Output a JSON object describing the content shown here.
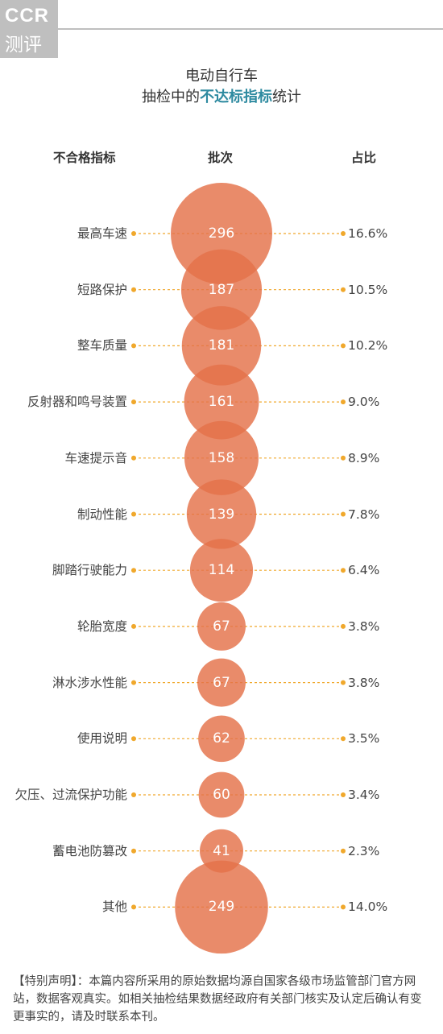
{
  "logo": {
    "top": "CCR",
    "bottom": "测评"
  },
  "title_line1": "电动自行车",
  "title_line2": {
    "pre": "抽检中的",
    "highlight": "不达标指标",
    "post": "统计"
  },
  "headers": {
    "indicator": "不合格指标",
    "count": "批次",
    "percent": "占比"
  },
  "colors": {
    "bubble": "#e47149",
    "dot": "#f0a82c",
    "accent": "#2e8aa0"
  },
  "chart_data": {
    "type": "bubble",
    "categories": [
      "最高车速",
      "短路保护",
      "整车质量",
      "反射器和鸣号装置",
      "车速提示音",
      "制动性能",
      "脚踏行驶能力",
      "轮胎宽度",
      "淋水涉水性能",
      "使用说明",
      "欠压、过流保护功能",
      "蓄电池防篡改",
      "其他"
    ],
    "values": [
      296,
      187,
      181,
      161,
      158,
      139,
      114,
      67,
      67,
      62,
      60,
      41,
      249
    ],
    "percent_labels": [
      "16.6%",
      "10.5%",
      "10.2%",
      "9.0%",
      "8.9%",
      "7.8%",
      "6.4%",
      "3.8%",
      "3.8%",
      "3.5%",
      "3.4%",
      "2.3%",
      "14.0%"
    ]
  },
  "note": "【特别声明】：本篇内容所采用的原始数据均源自国家各级市场监管部门官方网站，数据客观真实。如相关抽检结果数据经政府有关部门核实及认定后确认有变更事实的，请及时联系本刊。"
}
